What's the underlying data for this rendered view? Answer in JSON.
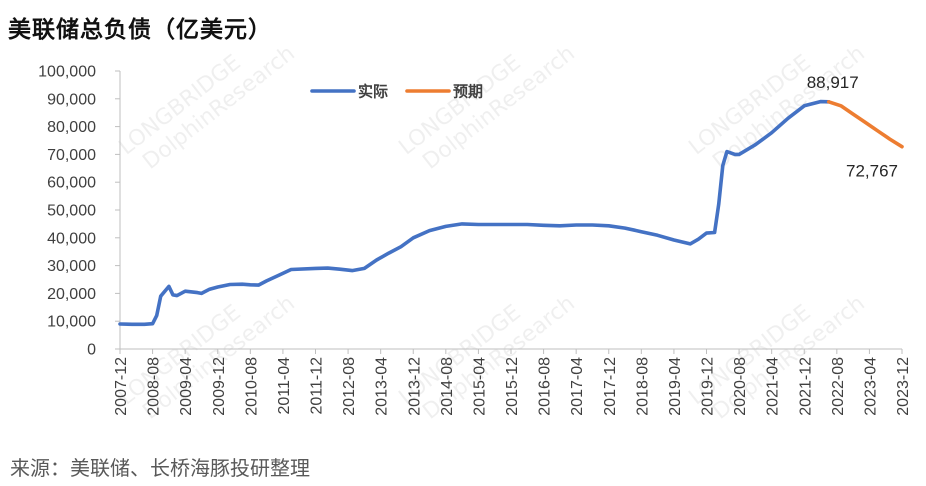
{
  "title": "美联储总负债（亿美元）",
  "source": "来源：美联储、长桥海豚投研整理",
  "watermark": {
    "brand_small": "LONGBRIDGE",
    "brand": "DolphinResearch"
  },
  "chart_data": {
    "type": "line",
    "ylim": [
      0,
      100000
    ],
    "y_ticks": [
      0,
      10000,
      20000,
      30000,
      40000,
      50000,
      60000,
      70000,
      80000,
      90000,
      100000
    ],
    "y_tick_labels": [
      "0",
      "10,000",
      "20,000",
      "30,000",
      "40,000",
      "50,000",
      "60,000",
      "70,000",
      "80,000",
      "90,000",
      "100,000"
    ],
    "x_range": [
      "2007-12",
      "2023-12"
    ],
    "x_tick_labels": [
      "2007-12",
      "2008-08",
      "2009-04",
      "2009-12",
      "2010-08",
      "2011-04",
      "2011-12",
      "2012-08",
      "2013-04",
      "2013-12",
      "2014-08",
      "2015-04",
      "2015-12",
      "2016-08",
      "2017-04",
      "2017-12",
      "2018-08",
      "2019-04",
      "2019-12",
      "2020-08",
      "2021-04",
      "2021-12",
      "2022-08",
      "2023-04",
      "2023-12"
    ],
    "grid": false,
    "legend_position": "top-center",
    "series": [
      {
        "name": "实际",
        "color": "#4472C4",
        "points": [
          [
            "2007-12",
            9000
          ],
          [
            "2008-03",
            8900
          ],
          [
            "2008-06",
            8900
          ],
          [
            "2008-08",
            9100
          ],
          [
            "2008-09",
            12000
          ],
          [
            "2008-10",
            19000
          ],
          [
            "2008-12",
            22500
          ],
          [
            "2009-01",
            19500
          ],
          [
            "2009-02",
            19200
          ],
          [
            "2009-04",
            20800
          ],
          [
            "2009-07",
            20300
          ],
          [
            "2009-08",
            20000
          ],
          [
            "2009-10",
            21500
          ],
          [
            "2009-12",
            22300
          ],
          [
            "2010-03",
            23200
          ],
          [
            "2010-06",
            23300
          ],
          [
            "2010-08",
            23100
          ],
          [
            "2010-10",
            23000
          ],
          [
            "2010-12",
            24500
          ],
          [
            "2011-03",
            26500
          ],
          [
            "2011-06",
            28600
          ],
          [
            "2011-12",
            29000
          ],
          [
            "2012-03",
            29100
          ],
          [
            "2012-06",
            28700
          ],
          [
            "2012-09",
            28200
          ],
          [
            "2012-12",
            29000
          ],
          [
            "2013-03",
            32000
          ],
          [
            "2013-06",
            34500
          ],
          [
            "2013-09",
            36800
          ],
          [
            "2013-12",
            40000
          ],
          [
            "2014-04",
            42600
          ],
          [
            "2014-08",
            44100
          ],
          [
            "2014-12",
            45000
          ],
          [
            "2015-04",
            44800
          ],
          [
            "2015-12",
            44800
          ],
          [
            "2016-04",
            44800
          ],
          [
            "2016-08",
            44500
          ],
          [
            "2016-12",
            44300
          ],
          [
            "2017-04",
            44600
          ],
          [
            "2017-08",
            44600
          ],
          [
            "2017-12",
            44300
          ],
          [
            "2018-04",
            43500
          ],
          [
            "2018-08",
            42200
          ],
          [
            "2018-12",
            40900
          ],
          [
            "2019-04",
            39200
          ],
          [
            "2019-08",
            37800
          ],
          [
            "2019-10",
            39500
          ],
          [
            "2019-12",
            41700
          ],
          [
            "2020-02",
            41900
          ],
          [
            "2020-03",
            52000
          ],
          [
            "2020-04",
            66000
          ],
          [
            "2020-05",
            71000
          ],
          [
            "2020-07",
            70000
          ],
          [
            "2020-08",
            70000
          ],
          [
            "2020-12",
            73500
          ],
          [
            "2021-04",
            77800
          ],
          [
            "2021-08",
            83000
          ],
          [
            "2021-12",
            87500
          ],
          [
            "2022-04",
            89000
          ],
          [
            "2022-06",
            88917
          ]
        ]
      },
      {
        "name": "预期",
        "color": "#ED7D31",
        "points": [
          [
            "2022-06",
            88917
          ],
          [
            "2022-09",
            87500
          ],
          [
            "2022-12",
            84500
          ],
          [
            "2023-03",
            81500
          ],
          [
            "2023-06",
            78500
          ],
          [
            "2023-09",
            75500
          ],
          [
            "2023-12",
            72767
          ]
        ]
      }
    ],
    "data_labels": [
      {
        "text": "88,917",
        "x": "2022-06",
        "y": 88917
      },
      {
        "text": "72,767",
        "x": "2023-12",
        "y": 72767
      }
    ]
  }
}
